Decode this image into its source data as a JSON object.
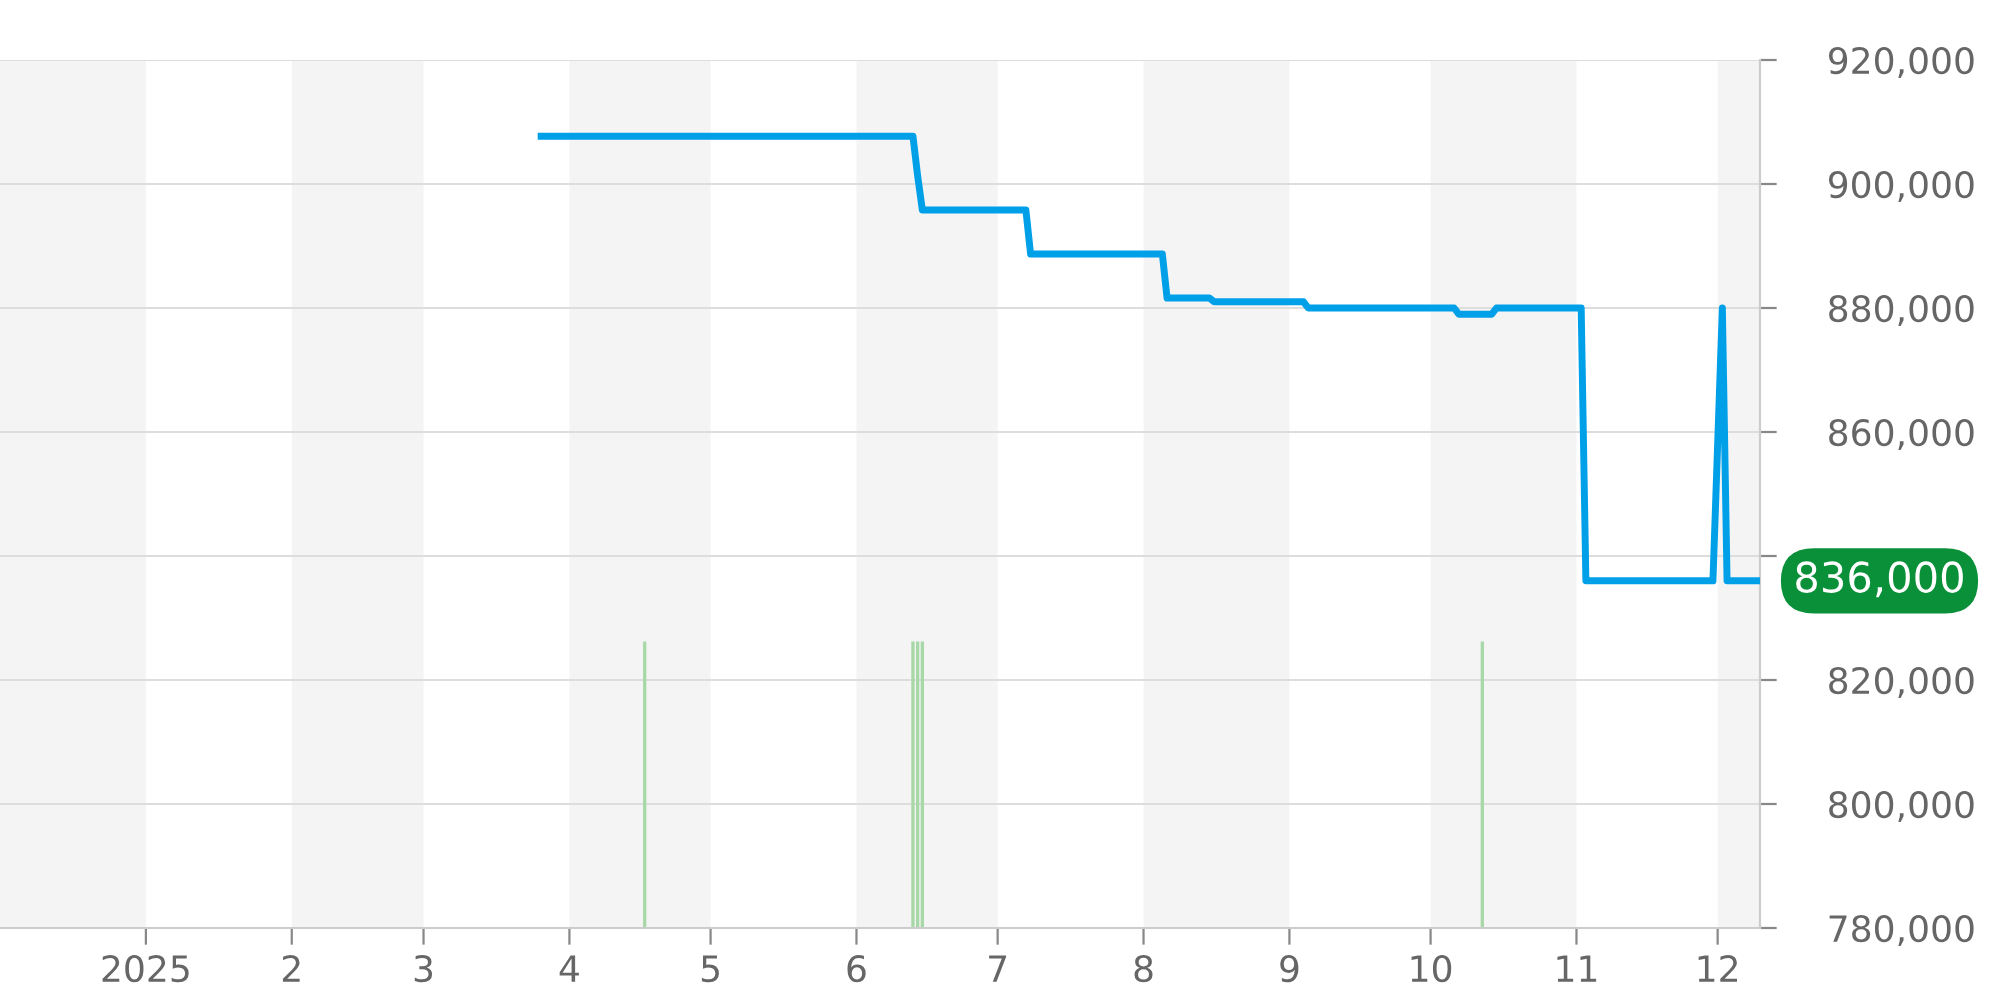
{
  "chart_data": {
    "type": "line",
    "series": [
      {
        "name": null,
        "color": "#00a0e9",
        "x": [
          "2025-03-26",
          "2025-06-13",
          "2025-06-14",
          "2025-06-15",
          "2025-07-07",
          "2025-07-08",
          "2025-08-05",
          "2025-08-06",
          "2025-08-15",
          "2025-08-16",
          "2025-09-04",
          "2025-09-05",
          "2025-10-06",
          "2025-10-07",
          "2025-10-14",
          "2025-10-15",
          "2025-11-02",
          "2025-11-03",
          "2025-11-30",
          "2025-12-02",
          "2025-12-03",
          "2025-12-10"
        ],
        "values": [
          907700,
          907700,
          901300,
          895800,
          895800,
          888700,
          888700,
          881600,
          881600,
          881000,
          881000,
          880000,
          880000,
          879000,
          879000,
          880000,
          880000,
          836000,
          836000,
          880000,
          836000,
          836000
        ]
      }
    ],
    "xlim": [
      "2024-12-01",
      "2025-12-10"
    ],
    "xticks": [
      {
        "value": "2025-01-01",
        "label": "2025"
      },
      {
        "value": "2025-02-01",
        "label": "2"
      },
      {
        "value": "2025-03-01",
        "label": "3"
      },
      {
        "value": "2025-04-01",
        "label": "4"
      },
      {
        "value": "2025-05-01",
        "label": "5"
      },
      {
        "value": "2025-06-01",
        "label": "6"
      },
      {
        "value": "2025-07-01",
        "label": "7"
      },
      {
        "value": "2025-08-01",
        "label": "8"
      },
      {
        "value": "2025-09-01",
        "label": "9"
      },
      {
        "value": "2025-10-01",
        "label": "10"
      },
      {
        "value": "2025-11-01",
        "label": "11"
      },
      {
        "value": "2025-12-01",
        "label": "12"
      }
    ],
    "ylim": [
      780000,
      920000
    ],
    "yticks": [
      {
        "value": 780000,
        "label": "780,000"
      },
      {
        "value": 800000,
        "label": "800,000"
      },
      {
        "value": 820000,
        "label": "820,000"
      },
      {
        "value": 840000,
        "label": null
      },
      {
        "value": 860000,
        "label": "860,000"
      },
      {
        "value": 880000,
        "label": "880,000"
      },
      {
        "value": 900000,
        "label": "900,000"
      },
      {
        "value": 920000,
        "label": "920,000"
      }
    ],
    "grid": "y",
    "legend": false,
    "line_style": "solid",
    "marker": "none",
    "bands": [
      {
        "axis": "x",
        "from": "2024-12-01",
        "to": "2025-01-01",
        "color": "#f4f4f4"
      },
      {
        "axis": "x",
        "from": "2025-02-01",
        "to": "2025-03-01",
        "color": "#f4f4f4"
      },
      {
        "axis": "x",
        "from": "2025-04-01",
        "to": "2025-05-01",
        "color": "#f4f4f4"
      },
      {
        "axis": "x",
        "from": "2025-06-01",
        "to": "2025-07-01",
        "color": "#f4f4f4"
      },
      {
        "axis": "x",
        "from": "2025-08-01",
        "to": "2025-09-01",
        "color": "#f4f4f4"
      },
      {
        "axis": "x",
        "from": "2025-10-01",
        "to": "2025-11-01",
        "color": "#f4f4f4"
      },
      {
        "axis": "x",
        "from": "2025-12-01",
        "to": "2025-12-10",
        "color": "#f4f4f4"
      }
    ],
    "ref_lines": [
      {
        "axis": "x",
        "value": "2025-04-17",
        "color": "#a8d8a8"
      },
      {
        "axis": "x",
        "value": "2025-06-13",
        "color": "#a8d8a8"
      },
      {
        "axis": "x",
        "value": "2025-06-14",
        "color": "#a8d8a8"
      },
      {
        "axis": "x",
        "value": "2025-06-15",
        "color": "#a8d8a8"
      },
      {
        "axis": "x",
        "value": "2025-10-12",
        "color": "#a8d8a8"
      }
    ],
    "annotations": [
      {
        "text": "836,000",
        "x": "2025-12-10",
        "y": 836000
      }
    ]
  }
}
